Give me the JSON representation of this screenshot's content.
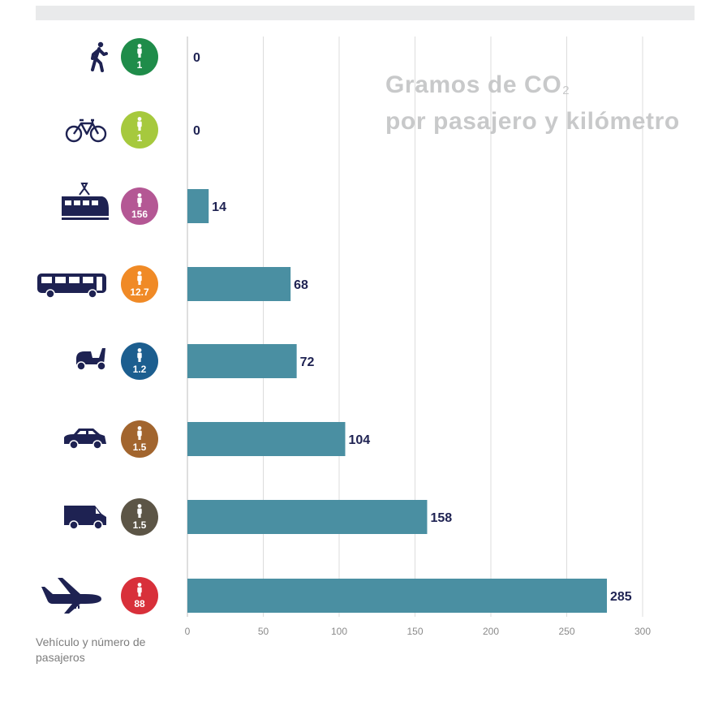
{
  "chart_data": {
    "type": "bar",
    "orientation": "horizontal",
    "title_line1": "Gramos de CO",
    "title_subscript": "2",
    "title_line2": "por pasajero y kilómetro",
    "ylabel": "Vehículo y número de pasajeros",
    "xlim": [
      0,
      300
    ],
    "xticks": [
      0,
      50,
      100,
      150,
      200,
      250,
      300
    ],
    "grid": true,
    "bar_color": "#4a8fa2",
    "label_color": "#1e2252",
    "categories": [
      {
        "vehicle": "walking-icon",
        "passengers": "1",
        "badge_color": "#1f8c4a"
      },
      {
        "vehicle": "bicycle-icon",
        "passengers": "1",
        "badge_color": "#a6c93d"
      },
      {
        "vehicle": "train-icon",
        "passengers": "156",
        "badge_color": "#b45794"
      },
      {
        "vehicle": "bus-icon",
        "passengers": "12.7",
        "badge_color": "#f08a26"
      },
      {
        "vehicle": "scooter-icon",
        "passengers": "1.2",
        "badge_color": "#1c5e8f"
      },
      {
        "vehicle": "car-icon",
        "passengers": "1.5",
        "badge_color": "#a2652e"
      },
      {
        "vehicle": "van-icon",
        "passengers": "1.5",
        "badge_color": "#5c5546"
      },
      {
        "vehicle": "airplane-icon",
        "passengers": "88",
        "badge_color": "#d8303a"
      }
    ],
    "values": [
      0,
      0,
      14,
      68,
      72,
      104,
      158,
      285
    ]
  }
}
